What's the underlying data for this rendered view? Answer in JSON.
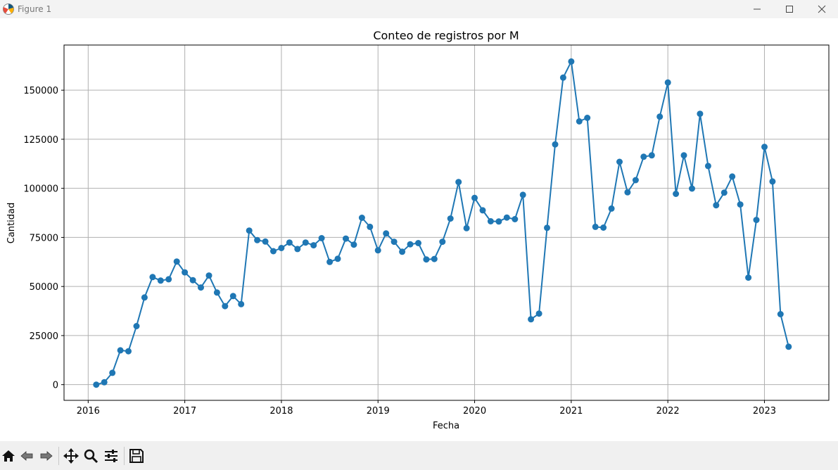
{
  "window": {
    "title": "Figure 1",
    "app_icon": "matplotlib-figure-icon",
    "controls": [
      "minimize-icon",
      "maximize-icon",
      "close-icon"
    ]
  },
  "toolbar": {
    "buttons": [
      {
        "icon": "home-icon",
        "action": "Home"
      },
      {
        "icon": "back-arrow-icon",
        "action": "Back"
      },
      {
        "icon": "forward-arrow-icon",
        "action": "Forward"
      },
      {
        "icon": "pan-move-icon",
        "action": "Pan"
      },
      {
        "icon": "zoom-magnifier-icon",
        "action": "Zoom"
      },
      {
        "icon": "configure-subplots-icon",
        "action": "Subplots"
      },
      {
        "icon": "save-floppy-icon",
        "action": "Save"
      }
    ]
  },
  "chart_data": {
    "type": "line",
    "title": "Conteo de registros por M",
    "xlabel": "Fecha",
    "ylabel": "Cantidad",
    "x_ticks": [
      "2016",
      "2017",
      "2018",
      "2019",
      "2020",
      "2021",
      "2022",
      "2023"
    ],
    "y_ticks": [
      "0",
      "25000",
      "50000",
      "75000",
      "100000",
      "125000",
      "150000"
    ],
    "xlim": [
      "2015-10",
      "2023-09"
    ],
    "ylim": [
      -8000,
      173000
    ],
    "grid": true,
    "marker": "circle",
    "color": "#1f77b4",
    "series": [
      {
        "x": [
          "2016-02",
          "2016-03",
          "2016-04",
          "2016-05",
          "2016-06",
          "2016-07",
          "2016-08",
          "2016-09",
          "2016-10",
          "2016-11",
          "2016-12",
          "2017-01",
          "2017-02",
          "2017-03",
          "2017-04",
          "2017-05",
          "2017-06",
          "2017-07",
          "2017-08",
          "2017-09",
          "2017-10",
          "2017-11",
          "2017-12",
          "2018-01",
          "2018-02",
          "2018-03",
          "2018-04",
          "2018-05",
          "2018-06",
          "2018-07",
          "2018-08",
          "2018-09",
          "2018-10",
          "2018-11",
          "2018-12",
          "2019-01",
          "2019-02",
          "2019-03",
          "2019-04",
          "2019-05",
          "2019-06",
          "2019-07",
          "2019-08",
          "2019-09",
          "2019-10",
          "2019-11",
          "2019-12",
          "2020-01",
          "2020-02",
          "2020-03",
          "2020-04",
          "2020-05",
          "2020-06",
          "2020-07",
          "2020-08",
          "2020-09",
          "2020-10",
          "2020-11",
          "2020-12",
          "2021-01",
          "2021-02",
          "2021-03",
          "2021-04",
          "2021-05",
          "2021-06",
          "2021-07",
          "2021-08",
          "2021-09",
          "2021-10",
          "2021-11",
          "2021-12",
          "2022-01",
          "2022-02",
          "2022-03",
          "2022-04",
          "2022-05",
          "2022-06",
          "2022-07",
          "2022-08",
          "2022-09",
          "2022-10",
          "2022-11",
          "2022-12",
          "2023-01",
          "2023-02",
          "2023-03",
          "2023-04"
        ],
        "values": [
          0,
          1200,
          6000,
          17500,
          17000,
          29800,
          44400,
          54800,
          53000,
          53700,
          62700,
          57200,
          53200,
          49500,
          55600,
          46900,
          40000,
          45100,
          41000,
          78500,
          73600,
          72900,
          68000,
          69600,
          72400,
          69100,
          72400,
          71000,
          74600,
          62500,
          64100,
          74400,
          71300,
          85000,
          80400,
          68400,
          77000,
          72800,
          67700,
          71500,
          72100,
          63800,
          64000,
          72800,
          84600,
          103200,
          79700,
          95100,
          88800,
          83200,
          83100,
          85100,
          84300,
          96700,
          33300,
          36200,
          79900,
          122400,
          156400,
          164600,
          134100,
          135900,
          80400,
          80000,
          89700,
          113500,
          98000,
          104200,
          116100,
          116800,
          136500,
          153900,
          97200,
          116800,
          99900,
          138000,
          111400,
          91400,
          97800,
          106000,
          91800,
          54500,
          83900,
          121100,
          103500,
          35900,
          19300
        ]
      }
    ]
  }
}
